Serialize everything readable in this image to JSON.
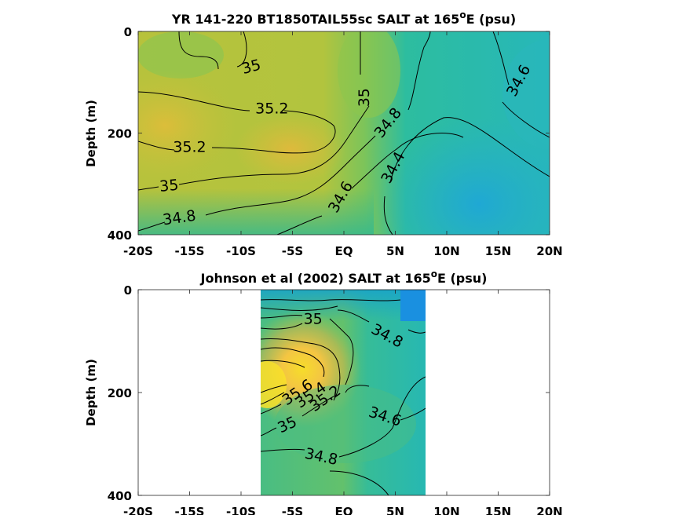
{
  "chart_data": [
    {
      "type": "contour",
      "title": "YR 141-220 BT1850TAIL55sc SALT at 165",
      "title_sup": "o",
      "title_end": "E (psu)",
      "ylabel": "Depth (m)",
      "xlabel": "",
      "x_ticks": [
        "-20S",
        "-15S",
        "-10S",
        "-5S",
        "EQ",
        "5N",
        "10N",
        "15N",
        "20N"
      ],
      "x_tick_values": [
        -20,
        -15,
        -10,
        -5,
        0,
        5,
        10,
        15,
        20
      ],
      "y_ticks": [
        "0",
        "200",
        "400"
      ],
      "y_tick_values": [
        0,
        200,
        400
      ],
      "xlim": [
        -20,
        20
      ],
      "ylim": [
        400,
        0
      ],
      "y_reversed": true,
      "colormap": "parula",
      "data_xlim": [
        -20,
        20
      ],
      "contour_labels": [
        {
          "text": "35",
          "x": -9,
          "y": 70,
          "angle": -15
        },
        {
          "text": "35.2",
          "x": -7,
          "y": 152,
          "angle": 0
        },
        {
          "text": "35.2",
          "x": -15,
          "y": 228,
          "angle": 0
        },
        {
          "text": "35",
          "x": -17,
          "y": 304,
          "angle": -5
        },
        {
          "text": "34.8",
          "x": -16,
          "y": 367,
          "angle": -8
        },
        {
          "text": "35",
          "x": 2,
          "y": 130,
          "angle": -90
        },
        {
          "text": "34.8",
          "x": 4.3,
          "y": 180,
          "angle": -52
        },
        {
          "text": "34.4",
          "x": 4.8,
          "y": 268,
          "angle": -62
        },
        {
          "text": "34.6",
          "x": -0.3,
          "y": 326,
          "angle": -60
        },
        {
          "text": "34.6",
          "x": 17,
          "y": 97,
          "angle": -62
        }
      ]
    },
    {
      "type": "contour",
      "title": "Johnson et al (2002) SALT at 165",
      "title_sup": "o",
      "title_end": "E (psu)",
      "ylabel": "Depth (m)",
      "xlabel": "",
      "x_ticks": [
        "-20S",
        "-15S",
        "-10S",
        "-5S",
        "EQ",
        "5N",
        "10N",
        "15N",
        "20N"
      ],
      "x_tick_values": [
        -20,
        -15,
        -10,
        -5,
        0,
        5,
        10,
        15,
        20
      ],
      "y_ticks": [
        "0",
        "200",
        "400"
      ],
      "y_tick_values": [
        0,
        200,
        400
      ],
      "xlim": [
        -20,
        20
      ],
      "ylim": [
        400,
        0
      ],
      "y_reversed": true,
      "colormap": "parula",
      "data_xlim": [
        -8,
        8
      ],
      "contour_labels": [
        {
          "text": "35",
          "x": -3,
          "y": 57,
          "angle": 0
        },
        {
          "text": "34.8",
          "x": 4.2,
          "y": 90,
          "angle": 28
        },
        {
          "text": "35.6",
          "x": -4.5,
          "y": 200,
          "angle": -35
        },
        {
          "text": "35.4",
          "x": -3.2,
          "y": 205,
          "angle": -35
        },
        {
          "text": "35.2",
          "x": -1.8,
          "y": 212,
          "angle": -35
        },
        {
          "text": "35",
          "x": -5.5,
          "y": 263,
          "angle": -25
        },
        {
          "text": "34.6",
          "x": 4,
          "y": 247,
          "angle": 18
        },
        {
          "text": "34.8",
          "x": -2.2,
          "y": 325,
          "angle": 12
        }
      ]
    }
  ]
}
